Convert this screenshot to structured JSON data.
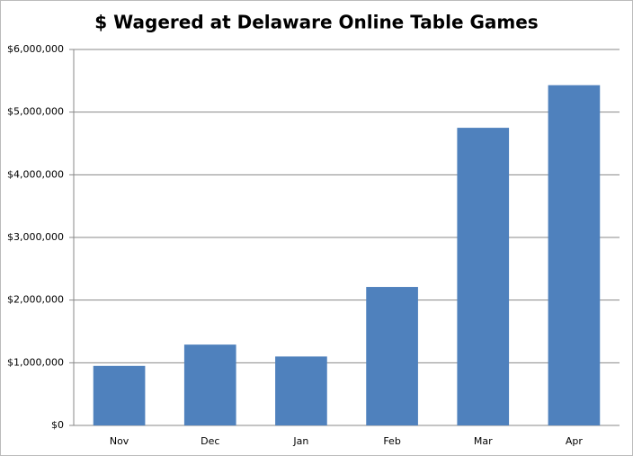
{
  "chart_data": {
    "type": "bar",
    "title": "$ Wagered at Delaware Online Table Games",
    "categories": [
      "Nov",
      "Dec",
      "Jan",
      "Feb",
      "Mar",
      "Apr"
    ],
    "values": [
      950000,
      1290000,
      1100000,
      2210000,
      4750000,
      5430000
    ],
    "color": "#4f81bd",
    "ylim": [
      0,
      6000000
    ],
    "yticks": [
      {
        "value": 0,
        "label": "$0"
      },
      {
        "value": 1000000,
        "label": "$1,000,000"
      },
      {
        "value": 2000000,
        "label": "$2,000,000"
      },
      {
        "value": 3000000,
        "label": "$3,000,000"
      },
      {
        "value": 4000000,
        "label": "$4,000,000"
      },
      {
        "value": 5000000,
        "label": "$5,000,000"
      },
      {
        "value": 6000000,
        "label": "$6,000,000"
      }
    ],
    "grid": true
  }
}
